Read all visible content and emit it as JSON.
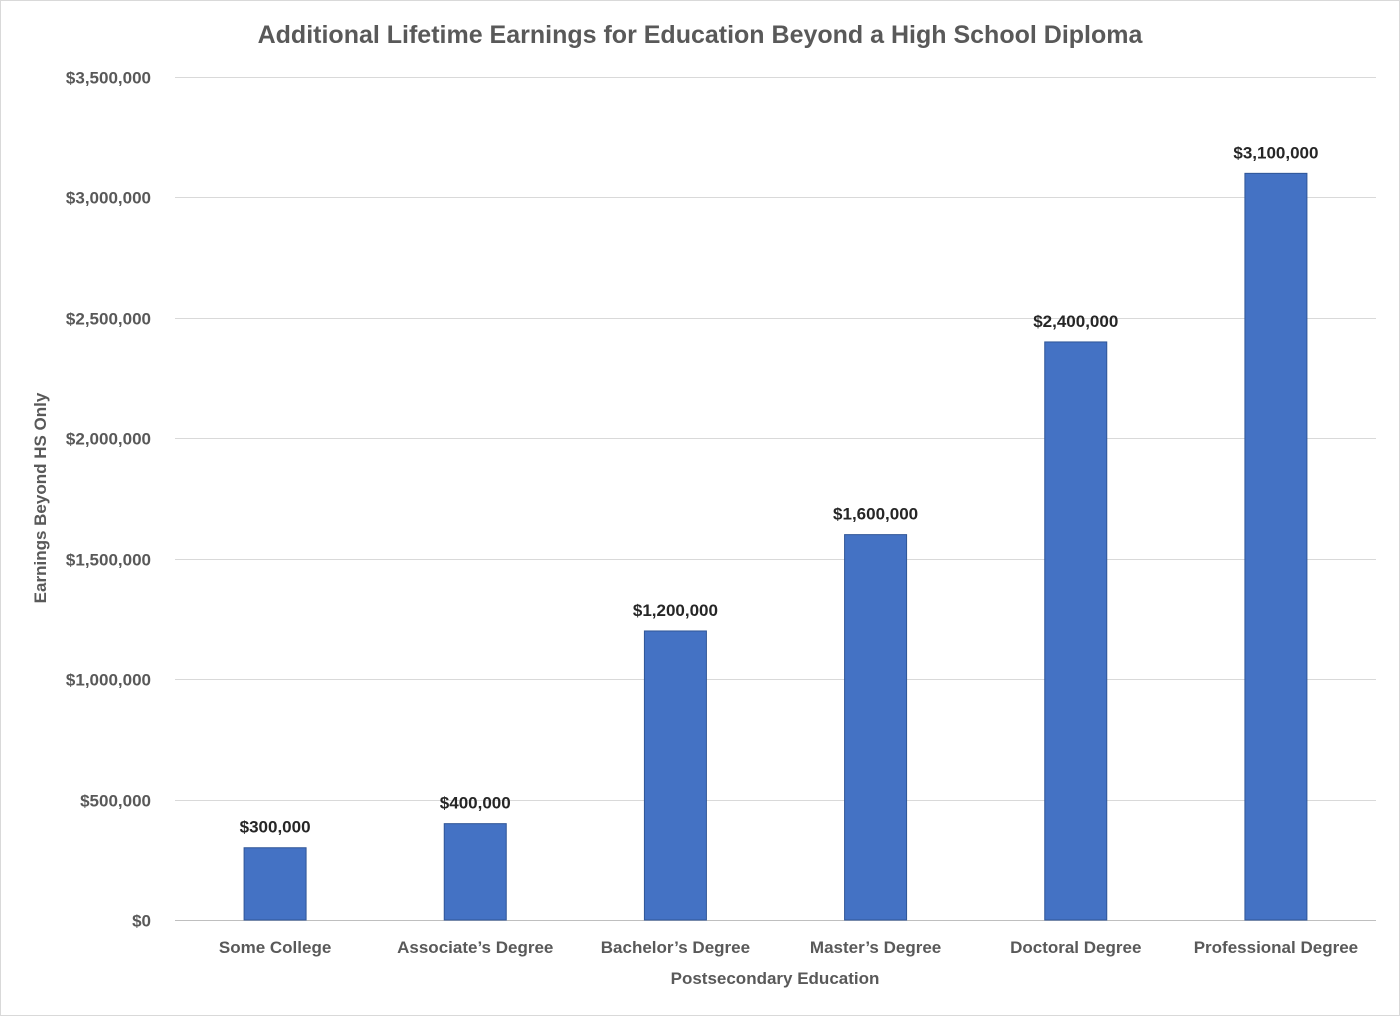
{
  "chart_data": {
    "type": "bar",
    "title": "Additional Lifetime Earnings for Education Beyond a High School Diploma",
    "xlabel": "Postsecondary Education",
    "ylabel": "Earnings Beyond HS Only",
    "categories": [
      "Some College",
      "Associate’s Degree",
      "Bachelor’s Degree",
      "Master’s Degree",
      "Doctoral Degree",
      "Professional Degree"
    ],
    "values": [
      300000,
      400000,
      1200000,
      1600000,
      2400000,
      3100000
    ],
    "data_labels": [
      "$300,000",
      "$400,000",
      "$1,200,000",
      "$1,600,000",
      "$2,400,000",
      "$3,100,000"
    ],
    "ylim": [
      0,
      3500000
    ],
    "yticks": [
      0,
      500000,
      1000000,
      1500000,
      2000000,
      2500000,
      3000000,
      3500000
    ],
    "ytick_labels": [
      "$0",
      "$500,000",
      "$1,000,000",
      "$1,500,000",
      "$2,000,000",
      "$2,500,000",
      "$3,000,000",
      "$3,500,000"
    ],
    "grid": true,
    "legend": "none",
    "colors": {
      "bar": "#4472C4",
      "bar_edge": "#2F5597"
    }
  }
}
